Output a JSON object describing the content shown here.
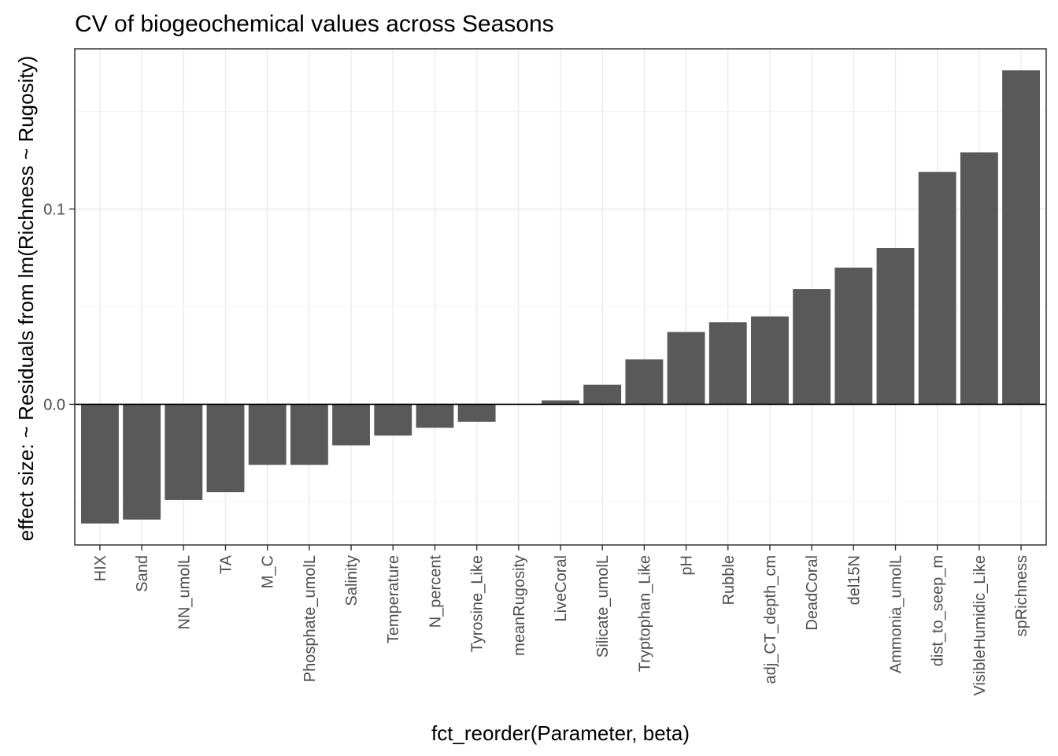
{
  "chart_data": {
    "type": "bar",
    "title": "CV of biogeochemical values across Seasons",
    "xlabel": "fct_reorder(Parameter, beta)",
    "ylabel": "effect size: ~ Residuals from lm(Richness ~ Rugosity)",
    "categories": [
      "HIX",
      "Sand",
      "NN_umolL",
      "TA",
      "M_C",
      "Phosphate_umolL",
      "Salinity",
      "Temperature",
      "N_percent",
      "Tyrosine_Like",
      "meanRugosity",
      "LiveCoral",
      "Silicate_umolL",
      "Tryptophan_Like",
      "pH",
      "Rubble",
      "adj_CT_depth_cm",
      "DeadCoral",
      "del15N",
      "Ammonia_umolL",
      "dist_to_seep_m",
      "VisibleHumidic_Like",
      "spRichness"
    ],
    "values": [
      -0.061,
      -0.059,
      -0.049,
      -0.045,
      -0.031,
      -0.031,
      -0.021,
      -0.016,
      -0.012,
      -0.009,
      0.0,
      0.002,
      0.01,
      0.023,
      0.037,
      0.042,
      0.045,
      0.059,
      0.07,
      0.08,
      0.119,
      0.129,
      0.171
    ],
    "ylim": [
      -0.072,
      0.182
    ],
    "yticks": [
      0.0,
      0.1
    ],
    "ytick_labels": [
      "0.0",
      "0.1"
    ],
    "bar_color": "#595959",
    "grid": true,
    "legend": "none"
  }
}
